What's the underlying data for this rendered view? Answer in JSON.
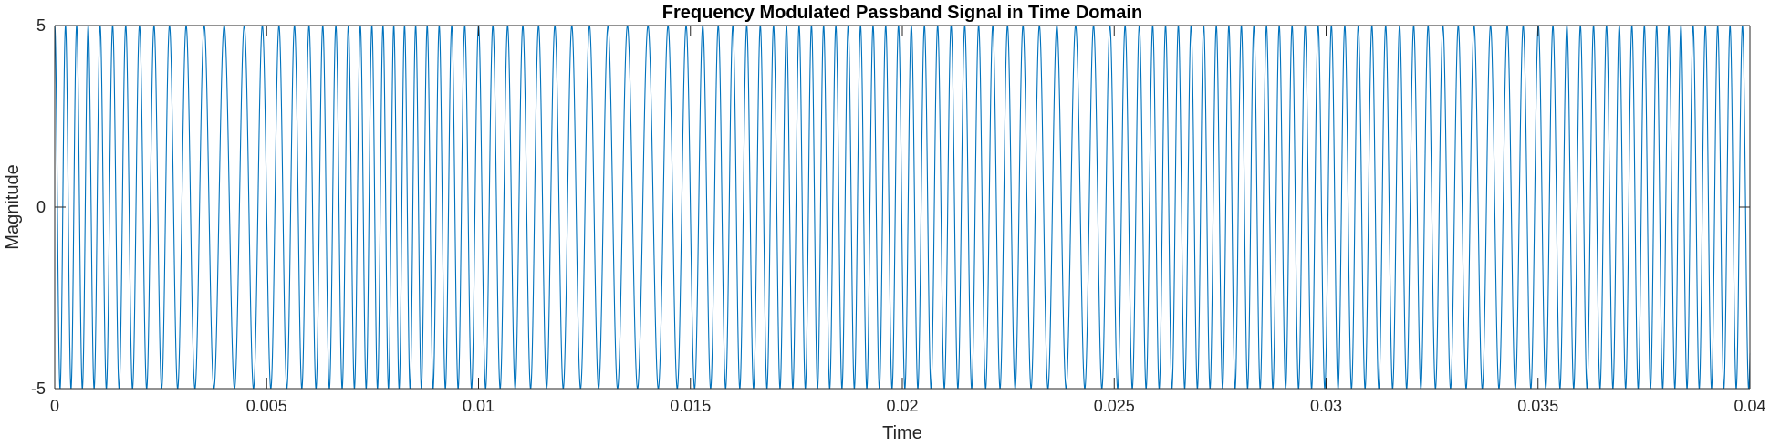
{
  "chart_data": {
    "type": "line",
    "title": "Frequency Modulated Passband Signal in Time Domain",
    "xlabel": "Time",
    "ylabel": "Magnitude",
    "xlim": [
      0,
      0.04
    ],
    "ylim": [
      -5,
      5
    ],
    "xticks": [
      0,
      0.005,
      0.01,
      0.015,
      0.02,
      0.025,
      0.03,
      0.035,
      0.04
    ],
    "xtick_labels": [
      "0",
      "0.005",
      "0.01",
      "0.015",
      "0.02",
      "0.025",
      "0.03",
      "0.035",
      "0.04"
    ],
    "yticks": [
      -5,
      0,
      5
    ],
    "ytick_labels": [
      "-5",
      "0",
      "5"
    ],
    "grid": false,
    "legend": "none",
    "series": [
      {
        "color": "#0072BD",
        "amplitude": 5,
        "carrier_hz": 3000,
        "instantaneous_freq_hz": [
          [
            0,
            4000
          ],
          [
            0.002,
            3000
          ],
          [
            0.004,
            2000
          ],
          [
            0.006,
            3000
          ],
          [
            0.008,
            4000
          ],
          [
            0.01,
            3000
          ],
          [
            0.012,
            2500
          ],
          [
            0.014,
            2000
          ],
          [
            0.016,
            3000
          ],
          [
            0.018,
            3500
          ],
          [
            0.02,
            3300
          ],
          [
            0.022,
            3000
          ],
          [
            0.024,
            2200
          ],
          [
            0.026,
            3300
          ],
          [
            0.028,
            3400
          ],
          [
            0.03,
            3200
          ],
          [
            0.032,
            3000
          ],
          [
            0.034,
            2500
          ],
          [
            0.036,
            3200
          ],
          [
            0.038,
            3500
          ],
          [
            0.04,
            3400
          ]
        ]
      }
    ]
  }
}
